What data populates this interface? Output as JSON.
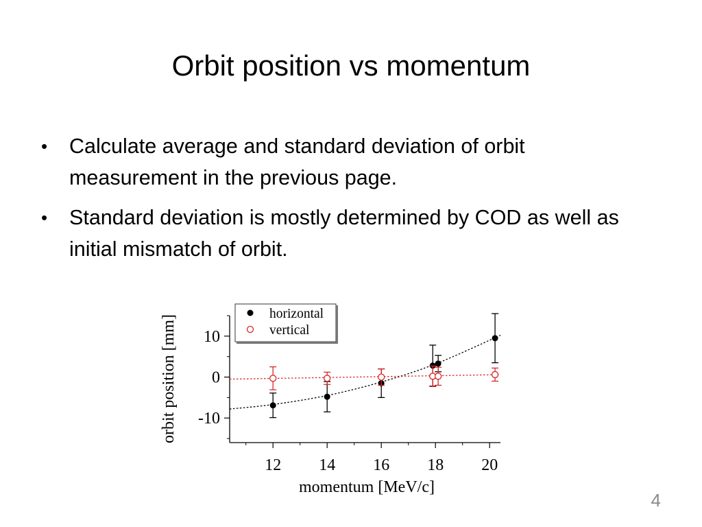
{
  "slide": {
    "title": "Orbit position vs momentum",
    "bullets": [
      "Calculate average and standard deviation of orbit measurement in the previous page.",
      "Standard deviation is mostly determined by COD as well as initial mismatch of orbit."
    ],
    "bullet_glyph": "•",
    "page_number": "4"
  },
  "chart_data": {
    "type": "scatter",
    "xlabel": "momentum [MeV/c]",
    "ylabel": "orbit position [mm]",
    "xlim": [
      10.4,
      20.4
    ],
    "ylim": [
      -16,
      15
    ],
    "xticks": [
      12,
      14,
      16,
      18,
      20
    ],
    "yticks": [
      10,
      0,
      -10
    ],
    "ytick_labels": [
      "10",
      "0",
      "-10"
    ],
    "legend_position": "top-left",
    "grid": false,
    "series": [
      {
        "name": "horizontal",
        "marker": "filled-circle",
        "color": "#000000",
        "points": [
          {
            "x": 12.0,
            "y": -6.9,
            "err": 3.0
          },
          {
            "x": 14.0,
            "y": -4.8,
            "err": 3.7
          },
          {
            "x": 16.0,
            "y": -1.5,
            "err": 3.5
          },
          {
            "x": 17.9,
            "y": 2.8,
            "err": 5.0
          },
          {
            "x": 18.1,
            "y": 3.3,
            "err": 2.0
          },
          {
            "x": 20.2,
            "y": 9.5,
            "err": 6.0
          }
        ],
        "fit_curve": [
          [
            10.4,
            -7.8
          ],
          [
            12,
            -6.7
          ],
          [
            14,
            -4.5
          ],
          [
            16,
            -1.2
          ],
          [
            18,
            3.2
          ],
          [
            20.4,
            10.2
          ]
        ],
        "fit_color": "#000000"
      },
      {
        "name": "vertical",
        "marker": "open-circle",
        "color": "#d62728",
        "points": [
          {
            "x": 12.0,
            "y": -0.3,
            "err": 2.8
          },
          {
            "x": 14.0,
            "y": -0.3,
            "err": 1.5
          },
          {
            "x": 16.0,
            "y": 0.0,
            "err": 2.0
          },
          {
            "x": 17.9,
            "y": 0.2,
            "err": 2.5
          },
          {
            "x": 18.1,
            "y": 0.2,
            "err": 2.2
          },
          {
            "x": 20.2,
            "y": 0.6,
            "err": 1.6
          }
        ],
        "fit_curve": [
          [
            10.4,
            -0.5
          ],
          [
            20.4,
            0.6
          ]
        ],
        "fit_color": "#d62728"
      }
    ]
  }
}
